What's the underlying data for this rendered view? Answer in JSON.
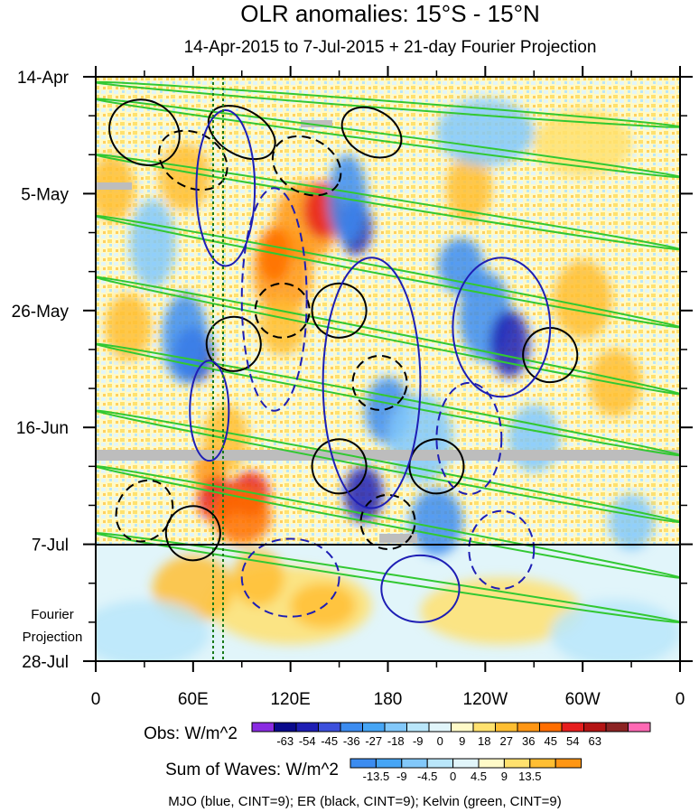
{
  "chart_data": {
    "type": "heatmap",
    "title": "OLR anomalies: 15°S - 15°N",
    "subtitle": "14-Apr-2015 to 7-Jul-2015 + 21-day Fourier Projection",
    "y_tick_labels": [
      "14-Apr",
      "5-May",
      "26-May",
      "16-Jun",
      "7-Jul",
      "28-Jul"
    ],
    "y_day_positions": [
      0,
      21,
      42,
      63,
      84,
      105
    ],
    "x_tick_labels": [
      "0",
      "60E",
      "120E",
      "180",
      "120W",
      "60W",
      "0"
    ],
    "x_lon_positions": [
      0,
      60,
      120,
      180,
      240,
      300,
      360
    ],
    "projection_label": [
      "Fourier",
      "Projection"
    ],
    "obs_start_day_line": 84,
    "obs_colorbar": {
      "label": "Obs: W/m^2",
      "ticks": [
        "-63",
        "-54",
        "-45",
        "-36",
        "-27",
        "-18",
        "-9",
        "0",
        "9",
        "18",
        "27",
        "36",
        "45",
        "54",
        "63"
      ],
      "colors": [
        "#8a2be2",
        "#0a0a8c",
        "#1e1eb4",
        "#3c50dc",
        "#3c8cf0",
        "#46a5f5",
        "#82c8fa",
        "#b9e6fa",
        "#e1f5fa",
        "#fffac8",
        "#ffe16e",
        "#ffbe32",
        "#ff9614",
        "#ff6e00",
        "#e61e1e",
        "#b41414",
        "#8c2323",
        "#ff69b4"
      ]
    },
    "waves_colorbar": {
      "label": "Sum of Waves: W/m^2",
      "ticks": [
        "-13.5",
        "-9",
        "-4.5",
        "0",
        "4.5",
        "9",
        "13.5"
      ],
      "colors": [
        "#3c8cf0",
        "#46a5f5",
        "#82c8fa",
        "#b9e6fa",
        "#e1f5fa",
        "#fffac8",
        "#ffe16e",
        "#ffbe32",
        "#ff9614"
      ]
    },
    "legend": "MJO (blue, CINT=9); ER (black, CINT=9); Kelvin (green, CINT=9)",
    "series_colors": {
      "MJO": "#1e1eb4",
      "ER": "#000000",
      "Kelvin": "#32c832"
    }
  }
}
